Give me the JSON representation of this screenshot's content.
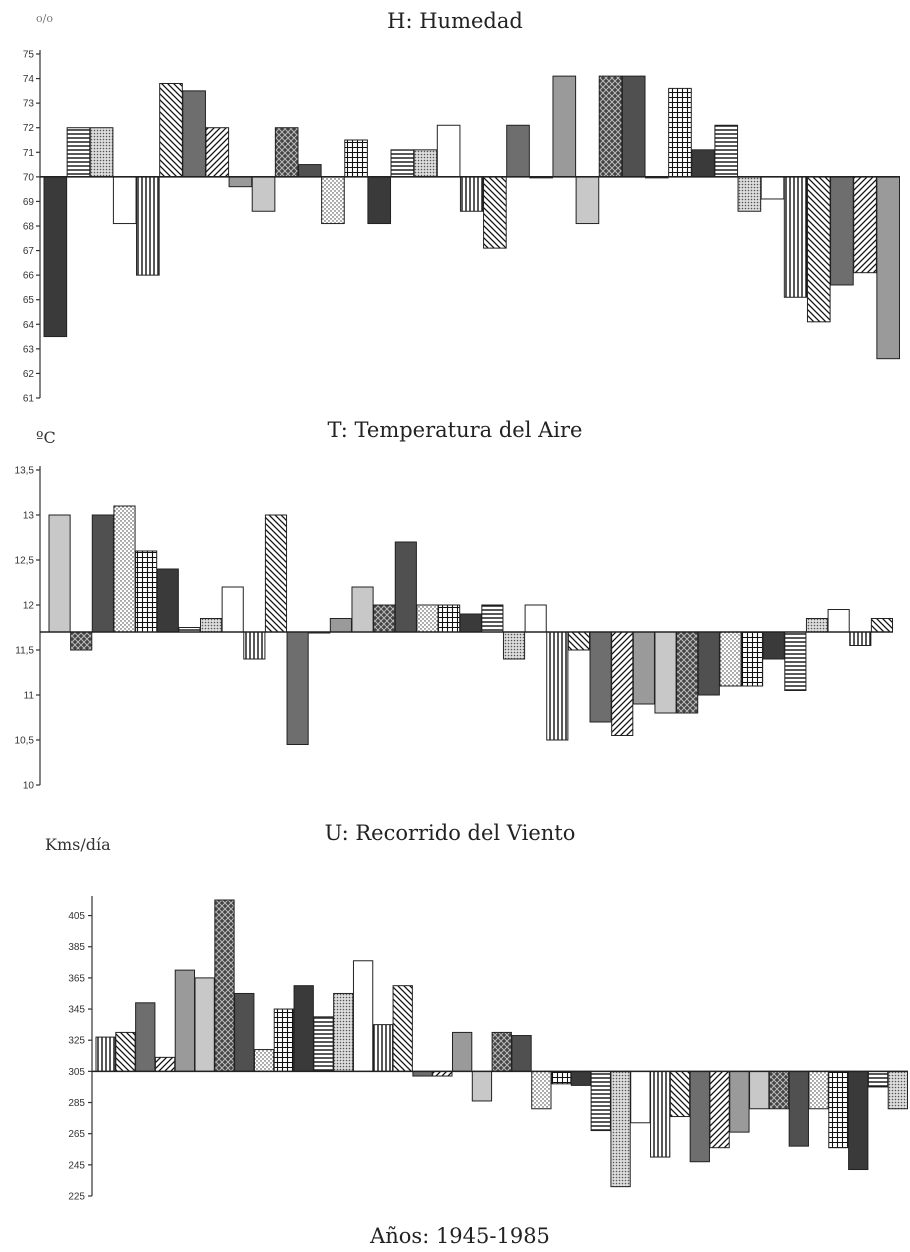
{
  "footer": "Años: 1945-1985",
  "chart_data": [
    {
      "type": "bar",
      "title": "H: Humedad",
      "ylabel": "o/o",
      "ylim": [
        61,
        75
      ],
      "baseline": 70,
      "yticks": [
        "61",
        "62",
        "63",
        "64",
        "65",
        "66",
        "67",
        "68",
        "69",
        "70",
        "71",
        "72",
        "73",
        "74",
        "75"
      ],
      "values": [
        63.5,
        72,
        72,
        68.1,
        66,
        73.8,
        73.5,
        72,
        69.6,
        68.6,
        72,
        70.5,
        68.1,
        71.5,
        68.1,
        71.1,
        71.1,
        72.1,
        68.6,
        67.1,
        72.1,
        70,
        74.1,
        68.1,
        74.1,
        74.1,
        70,
        73.6,
        71.1,
        72.1,
        68.6,
        69.1,
        65.1,
        64.1,
        65.6,
        66.1,
        62.6
      ]
    },
    {
      "type": "bar",
      "title": "T: Temperatura del Aire",
      "ylabel": "ºC",
      "ylim": [
        10,
        13.5
      ],
      "baseline": 11.7,
      "yticks": [
        "10",
        "10,5",
        "11",
        "11,5",
        "12",
        "12,5",
        "13",
        "13,5"
      ],
      "values": [
        13,
        11.5,
        13,
        13.1,
        12.6,
        12.4,
        11.75,
        11.85,
        12.2,
        11.4,
        13,
        10.45,
        11.7,
        11.85,
        12.2,
        12,
        12.7,
        12,
        12,
        11.9,
        12,
        11.4,
        12,
        10.5,
        11.5,
        10.7,
        10.55,
        10.9,
        10.8,
        10.8,
        11,
        11.1,
        11.1,
        11.4,
        11.05,
        11.85,
        11.95,
        11.55,
        11.85
      ]
    },
    {
      "type": "bar",
      "title": "U: Recorrido del Viento",
      "ylabel": "Kms/día",
      "ylim": [
        225,
        415
      ],
      "baseline": 305,
      "yticks": [
        "225",
        "245",
        "265",
        "285",
        "305",
        "325",
        "345",
        "365",
        "385",
        "405"
      ],
      "values": [
        327,
        330,
        349,
        314,
        370,
        365,
        415,
        355,
        319,
        345,
        360,
        340,
        355,
        376,
        335,
        360,
        302,
        302,
        330,
        286,
        330,
        328,
        281,
        297,
        296,
        267,
        231,
        272,
        250,
        276,
        247,
        256,
        266,
        281,
        281,
        257,
        281,
        256,
        242,
        295,
        281
      ]
    }
  ]
}
